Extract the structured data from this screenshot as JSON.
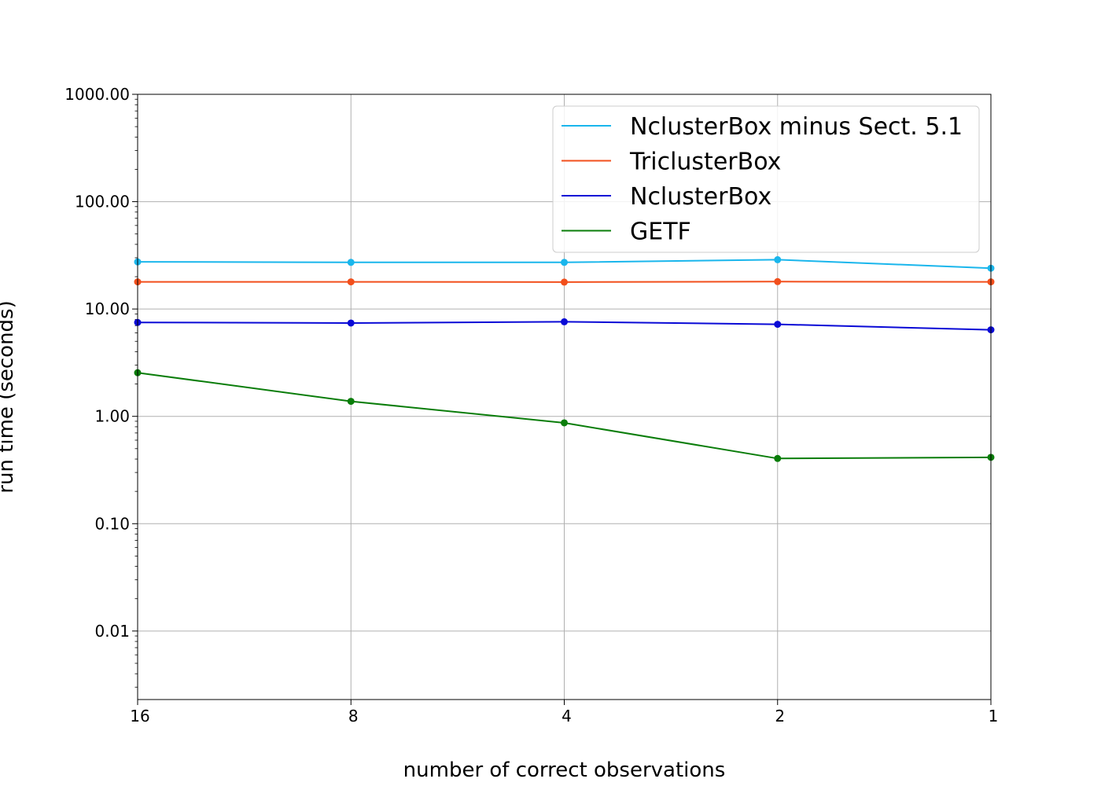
{
  "chart_data": {
    "type": "line",
    "title": "",
    "xlabel": "number of correct observations",
    "ylabel": "run time (seconds)",
    "x": [
      16,
      8,
      4,
      2,
      1
    ],
    "x_tick_labels": [
      "16",
      "8",
      "4",
      "2",
      "1"
    ],
    "x_scale": "log2",
    "x_reversed": true,
    "y_scale": "log",
    "ylim": [
      0.0023,
      1000
    ],
    "y_ticks": [
      0.01,
      0.1,
      1,
      10,
      100,
      1000
    ],
    "y_tick_labels": [
      "0.01",
      "0.10",
      "1.00",
      "10.00",
      "100.00",
      "1000.00"
    ],
    "grid": true,
    "legend_position": "top-right",
    "series": [
      {
        "name": "NclusterBox minus Sect. 5.1",
        "color": "#1ab6ec",
        "values": [
          27.5,
          27.2,
          27.2,
          28.8,
          24.0
        ]
      },
      {
        "name": "TriclusterBox",
        "color": "#f24f1c",
        "values": [
          17.9,
          17.9,
          17.8,
          18.0,
          17.9
        ]
      },
      {
        "name": "NclusterBox",
        "color": "#0a0ad6",
        "values": [
          7.5,
          7.4,
          7.6,
          7.2,
          6.4
        ]
      },
      {
        "name": "GETF",
        "color": "#0a7d0a",
        "values": [
          2.55,
          1.38,
          0.87,
          0.405,
          0.415
        ]
      }
    ]
  }
}
